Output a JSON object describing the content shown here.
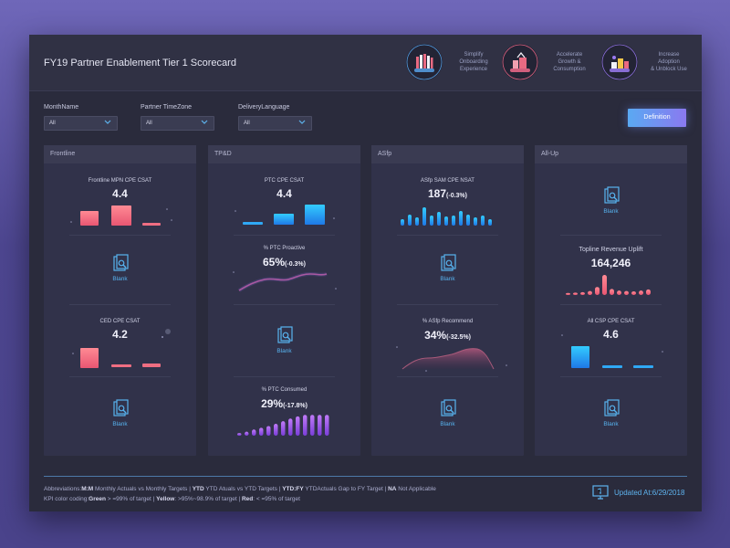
{
  "header": {
    "title": "FY19 Partner Enablement Tier 1 Scorecard",
    "themes": [
      {
        "label_lines": [
          "Simplify",
          "Onboarding",
          "Experience"
        ],
        "icon": "people-icon",
        "ring_color": "#5aa9f2"
      },
      {
        "label_lines": [
          "Accelerate",
          "Growth &",
          "Consumption"
        ],
        "icon": "growth-icon",
        "ring_color": "#f06a8a"
      },
      {
        "label_lines": [
          "Increase",
          "Adoption",
          "& Unblock Use"
        ],
        "icon": "adoption-icon",
        "ring_color": "#9a7af0"
      }
    ]
  },
  "filters": {
    "month": {
      "label": "MonthName",
      "value": "All"
    },
    "timezone": {
      "label": "Partner TimeZone",
      "value": "All"
    },
    "language": {
      "label": "DeliveryLanguage",
      "value": "All"
    },
    "definition_label": "Definition"
  },
  "panels": [
    {
      "title": "Frontline",
      "cells": [
        {
          "label": "Frontline MPN CPE CSAT",
          "value": "4.4",
          "bars": [
            0.55,
            0.7,
            0.12
          ],
          "color": "red"
        },
        {
          "blank": "Blank"
        },
        {
          "label": "CED CPE CSAT",
          "value": "4.2",
          "bars": [
            0.8,
            0.12,
            0.18
          ],
          "color": "red"
        },
        {
          "blank": "Blank"
        }
      ]
    },
    {
      "title": "TP&D",
      "cells": [
        {
          "label": "PTC CPE CSAT",
          "value": "4.4",
          "bars": [
            0.12,
            0.45,
            0.7
          ],
          "color": "blue"
        },
        {
          "label": "% PTC Proactive",
          "value": "65%",
          "delta": "(-0.3%)"
        },
        {
          "blank": "Blank"
        },
        {
          "label": "% PTC Consumed",
          "value": "29%",
          "delta": "(-17.8%)"
        }
      ]
    },
    {
      "title": "ASfp",
      "cells": [
        {
          "label": "ASfp SAM CPE NSAT",
          "value": "187",
          "delta": "(-0.3%)"
        },
        {
          "blank": "Blank"
        },
        {
          "label": "% ASfp Recommend",
          "value": "34%",
          "delta": "(-32.5%)"
        },
        {
          "blank": "Blank"
        }
      ]
    },
    {
      "title": "All-Up",
      "cells": [
        {
          "blank": "Blank"
        },
        {
          "label": "Topline Revenue Uplift",
          "value": "164,246"
        },
        {
          "label": "All CSP CPE CSAT",
          "value": "4.6",
          "bars": [
            0.8,
            0.12,
            0.12
          ],
          "color": "blue"
        },
        {
          "blank": "Blank"
        }
      ]
    }
  ],
  "footer": {
    "abbrev_prefix": "Abbreviations:",
    "abbrev_items": [
      {
        "k": "M:M",
        "v": " Monthly Actuals vs Monthly Targets | "
      },
      {
        "k": "YTD",
        "v": " YTD Atuals vs YTD Targets | "
      },
      {
        "k": "YTD:FY",
        "v": " YTDActuals Gap to FY Target | "
      },
      {
        "k": "NA",
        "v": " Not Applicable"
      }
    ],
    "kpi_prefix": "KPI color coding:",
    "kpi_items": [
      {
        "k": "Green",
        "v": " > =99% of target | "
      },
      {
        "k": "Yellow",
        "v": ": >95%~98.9% of target | "
      },
      {
        "k": "Red",
        "v": ": < =95% of target"
      }
    ],
    "updated": "Updated At:6/29/2018"
  },
  "sparklines": {
    "asfp_sam": [
      0.35,
      0.6,
      0.45,
      1.0,
      0.55,
      0.75,
      0.5,
      0.55,
      0.8,
      0.6,
      0.45,
      0.55,
      0.35
    ],
    "ptc_consumed": [
      0.12,
      0.18,
      0.28,
      0.36,
      0.44,
      0.54,
      0.66,
      0.78,
      0.88,
      0.95,
      0.95,
      0.95,
      0.95
    ],
    "topline_revenue": [
      0.1,
      0.12,
      0.14,
      0.2,
      0.4,
      1.0,
      0.3,
      0.22,
      0.2,
      0.18,
      0.22,
      0.28
    ]
  },
  "colors": {
    "red_start": "#ff7f8c",
    "red_end": "#e95a72",
    "blue_start": "#2fc6ff",
    "blue_end": "#1e7ee8",
    "purple": "#a05cf0",
    "accent_blue": "#5eb3ee"
  }
}
